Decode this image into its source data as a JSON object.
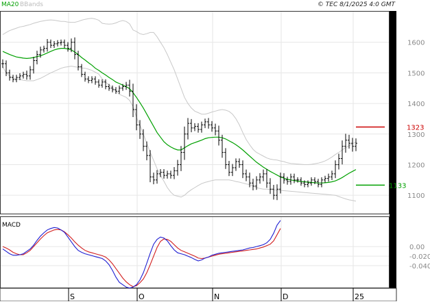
{
  "header": {
    "ma_label": "MA20",
    "bb_label": "BBands",
    "copyright": "© TEC 8/1/2025 4:0 GMT"
  },
  "colors": {
    "ma": "#00a000",
    "bbands": "#c8c8c8",
    "price": "#000000",
    "macd": "#1e1ed2",
    "signal": "#d21e1e",
    "grid": "#e6e6e6",
    "resistance": "#cc0000",
    "support": "#00a000"
  },
  "chart_data": [
    {
      "type": "ohlc",
      "panel": "price",
      "legend": [
        "MA20",
        "BBands"
      ],
      "ylim": [
        1040,
        1700
      ],
      "y_ticks": [
        1100,
        1200,
        1300,
        1400,
        1500,
        1600
      ],
      "y_tick_labels": [
        "1100",
        "1200",
        "1300",
        "1400",
        "1500",
        "1600"
      ],
      "x_labels": [
        "S",
        "O",
        "N",
        "D",
        "25"
      ],
      "x_label_index": [
        20,
        40,
        62,
        82,
        103
      ],
      "grid": true,
      "levels": [
        {
          "name": "resistance",
          "value": 1323,
          "label": "1323"
        },
        {
          "name": "support",
          "value": 1133,
          "label": "1133"
        }
      ],
      "close": [
        1530,
        1500,
        1485,
        1478,
        1485,
        1490,
        1495,
        1490,
        1510,
        1540,
        1560,
        1575,
        1580,
        1600,
        1590,
        1595,
        1598,
        1600,
        1590,
        1580,
        1600,
        1560,
        1520,
        1495,
        1480,
        1475,
        1480,
        1470,
        1460,
        1470,
        1455,
        1450,
        1445,
        1440,
        1450,
        1455,
        1460,
        1440,
        1380,
        1330,
        1300,
        1260,
        1230,
        1160,
        1150,
        1170,
        1175,
        1165,
        1170,
        1165,
        1180,
        1200,
        1240,
        1300,
        1335,
        1320,
        1325,
        1315,
        1330,
        1340,
        1330,
        1320,
        1310,
        1280,
        1240,
        1200,
        1175,
        1190,
        1210,
        1200,
        1170,
        1160,
        1140,
        1130,
        1150,
        1160,
        1170,
        1140,
        1120,
        1100,
        1120,
        1160,
        1150,
        1145,
        1160,
        1150,
        1150,
        1140,
        1135,
        1140,
        1150,
        1145,
        1135,
        1150,
        1155,
        1160,
        1170,
        1200,
        1220,
        1260,
        1280,
        1270,
        1260,
        1270
      ],
      "range": [
        40,
        30,
        30,
        25,
        25,
        25,
        25,
        35,
        35,
        35,
        35,
        30,
        25,
        30,
        25,
        25,
        25,
        25,
        25,
        30,
        35,
        45,
        35,
        25,
        25,
        25,
        25,
        25,
        25,
        25,
        25,
        25,
        25,
        25,
        25,
        25,
        30,
        50,
        70,
        50,
        45,
        45,
        45,
        50,
        40,
        35,
        30,
        30,
        30,
        30,
        35,
        45,
        60,
        70,
        50,
        40,
        30,
        30,
        30,
        30,
        35,
        35,
        40,
        50,
        50,
        40,
        35,
        35,
        30,
        30,
        40,
        40,
        40,
        40,
        35,
        35,
        40,
        45,
        45,
        40,
        45,
        40,
        35,
        30,
        30,
        30,
        25,
        25,
        25,
        25,
        25,
        25,
        25,
        25,
        25,
        30,
        30,
        40,
        45,
        55,
        60,
        50,
        50,
        45
      ],
      "ma20": [
        1570,
        1565,
        1560,
        1556,
        1552,
        1550,
        1548,
        1547,
        1548,
        1550,
        1553,
        1556,
        1560,
        1565,
        1570,
        1575,
        1578,
        1580,
        1580,
        1578,
        1575,
        1568,
        1560,
        1550,
        1542,
        1533,
        1525,
        1515,
        1508,
        1500,
        1493,
        1485,
        1478,
        1470,
        1465,
        1460,
        1455,
        1448,
        1435,
        1420,
        1403,
        1385,
        1365,
        1345,
        1325,
        1305,
        1290,
        1275,
        1265,
        1258,
        1252,
        1248,
        1248,
        1255,
        1262,
        1268,
        1272,
        1276,
        1280,
        1285,
        1288,
        1289,
        1290,
        1290,
        1288,
        1284,
        1278,
        1272,
        1265,
        1257,
        1248,
        1238,
        1228,
        1218,
        1208,
        1200,
        1192,
        1185,
        1178,
        1172,
        1166,
        1160,
        1156,
        1152,
        1150,
        1148,
        1146,
        1145,
        1144,
        1143,
        1142,
        1141,
        1140,
        1140,
        1141,
        1142,
        1144,
        1147,
        1152,
        1158,
        1165,
        1172,
        1178,
        1184
      ],
      "bb_upper": [
        1625,
        1632,
        1638,
        1642,
        1646,
        1650,
        1652,
        1655,
        1658,
        1662,
        1665,
        1668,
        1670,
        1672,
        1673,
        1672,
        1670,
        1668,
        1668,
        1666,
        1665,
        1665,
        1668,
        1672,
        1675,
        1677,
        1678,
        1676,
        1672,
        1662,
        1660,
        1659,
        1660,
        1663,
        1668,
        1671,
        1668,
        1660,
        1640,
        1635,
        1628,
        1625,
        1628,
        1632,
        1632,
        1618,
        1600,
        1582,
        1560,
        1535,
        1510,
        1480,
        1450,
        1420,
        1400,
        1385,
        1375,
        1370,
        1365,
        1365,
        1368,
        1372,
        1375,
        1378,
        1380,
        1378,
        1374,
        1365,
        1350,
        1330,
        1305,
        1282,
        1265,
        1250,
        1240,
        1234,
        1228,
        1222,
        1218,
        1216,
        1215,
        1212,
        1210,
        1206,
        1204,
        1203,
        1202,
        1201,
        1200,
        1200,
        1201,
        1203,
        1205,
        1208,
        1212,
        1218,
        1225,
        1233,
        1240,
        1248,
        1256,
        1262,
        1268,
        1274
      ],
      "bb_lower": [
        1520,
        1500,
        1490,
        1483,
        1480,
        1478,
        1476,
        1474,
        1474,
        1474,
        1478,
        1482,
        1488,
        1494,
        1500,
        1505,
        1510,
        1515,
        1518,
        1520,
        1522,
        1520,
        1518,
        1516,
        1515,
        1512,
        1508,
        1502,
        1496,
        1480,
        1470,
        1460,
        1452,
        1440,
        1430,
        1425,
        1420,
        1410,
        1390,
        1355,
        1330,
        1300,
        1270,
        1240,
        1214,
        1187,
        1165,
        1146,
        1125,
        1110,
        1100,
        1097,
        1094,
        1100,
        1110,
        1118,
        1125,
        1132,
        1138,
        1142,
        1145,
        1148,
        1150,
        1150,
        1150,
        1150,
        1150,
        1148,
        1145,
        1143,
        1140,
        1137,
        1135,
        1130,
        1125,
        1122,
        1120,
        1120,
        1119,
        1118,
        1117,
        1116,
        1115,
        1114,
        1113,
        1112,
        1111,
        1110,
        1109,
        1108,
        1107,
        1106,
        1105,
        1104,
        1103,
        1102,
        1101,
        1100,
        1096,
        1092,
        1088,
        1085,
        1083,
        1081
      ]
    },
    {
      "type": "line",
      "panel": "macd",
      "title": "MACD",
      "ylim": [
        -86,
        62
      ],
      "y_ticks": [
        0,
        -20,
        -40
      ],
      "y_tick_labels": [
        "0.00",
        "-0.020",
        "-0.040"
      ],
      "grid": true,
      "series": [
        {
          "name": "MACD",
          "values": [
            -5,
            -10,
            -15,
            -18,
            -18,
            -17,
            -15,
            -10,
            -5,
            3,
            13,
            22,
            29,
            35,
            38,
            40,
            39,
            35,
            30,
            20,
            10,
            0,
            -8,
            -12,
            -15,
            -17,
            -19,
            -21,
            -23,
            -25,
            -30,
            -38,
            -50,
            -64,
            -75,
            -80,
            -85,
            -87,
            -85,
            -80,
            -70,
            -55,
            -35,
            -14,
            5,
            15,
            20,
            18,
            12,
            2,
            -7,
            -13,
            -15,
            -17,
            -20,
            -23,
            -27,
            -30,
            -28,
            -24,
            -22,
            -18,
            -16,
            -14,
            -13,
            -12,
            -11,
            -10,
            -9,
            -8,
            -7,
            -5,
            -3,
            -2,
            0,
            2,
            4,
            8,
            15,
            28,
            45,
            55
          ]
        },
        {
          "name": "Signal",
          "values": [
            0,
            -3,
            -7,
            -12,
            -15,
            -17,
            -17,
            -13,
            -8,
            0,
            8,
            16,
            23,
            29,
            32,
            35,
            36,
            35,
            31,
            25,
            18,
            10,
            3,
            -3,
            -8,
            -11,
            -13,
            -15,
            -17,
            -19,
            -22,
            -28,
            -36,
            -46,
            -56,
            -66,
            -74,
            -80,
            -84,
            -82,
            -76,
            -68,
            -55,
            -38,
            -20,
            -2,
            11,
            16,
            15,
            11,
            4,
            -3,
            -8,
            -11,
            -14,
            -17,
            -20,
            -24,
            -25,
            -24,
            -22,
            -20,
            -18,
            -16,
            -15,
            -14,
            -13,
            -12,
            -11,
            -10,
            -9,
            -8,
            -7,
            -6,
            -5,
            -3,
            -1,
            2,
            5,
            12,
            25,
            38
          ]
        }
      ]
    }
  ]
}
